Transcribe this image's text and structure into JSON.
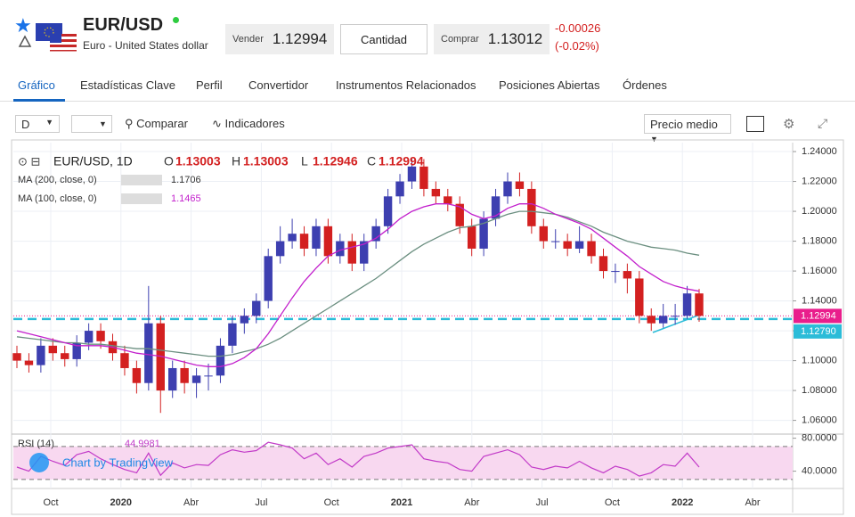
{
  "header": {
    "symbol": "EUR/USD",
    "name": "Euro - United States dollar",
    "sell_label": "Vender",
    "sell": 1.12994,
    "quantity": "Cantidad",
    "buy_label": "Comprar",
    "buy": 1.13012,
    "change": -0.00026,
    "change_pct": "(-0.02%)"
  },
  "tabs": [
    "Gráfico",
    "Estadísticas Clave",
    "Perfil",
    "Convertidor",
    "Instrumentos Relacionados",
    "Posiciones Abiertas",
    "Órdenes"
  ],
  "toolbar": {
    "interval": "D",
    "compare": "Comparar",
    "indicators": "Indicadores",
    "price_mode": "Precio medio"
  },
  "chart_data": {
    "type": "candlestick",
    "title": "EUR/USD, 1D",
    "legend": {
      "o_label": "O",
      "o": 1.13003,
      "h_label": "H",
      "h": 1.13003,
      "l_label": "L",
      "l": 1.12946,
      "c_label": "C",
      "c": 1.12994
    },
    "open": [
      1.105,
      1.1,
      1.097,
      1.11,
      1.105,
      1.101,
      1.112,
      1.12,
      1.113,
      1.105,
      1.095,
      1.085,
      1.125,
      1.08,
      1.095,
      1.085,
      1.09,
      1.09,
      1.11,
      1.125,
      1.13,
      1.14,
      1.17,
      1.18,
      1.185,
      1.175,
      1.19,
      1.17,
      1.18,
      1.165,
      1.18,
      1.19,
      1.21,
      1.22,
      1.23,
      1.215,
      1.21,
      1.205,
      1.19,
      1.175,
      1.195,
      1.21,
      1.22,
      1.215,
      1.19,
      1.18,
      1.18,
      1.175,
      1.18,
      1.17,
      1.16,
      1.16,
      1.155,
      1.13,
      1.125,
      1.13,
      1.13,
      1.145
    ],
    "high": [
      1.11,
      1.105,
      1.115,
      1.115,
      1.11,
      1.117,
      1.125,
      1.125,
      1.118,
      1.11,
      1.1,
      1.15,
      1.13,
      1.1,
      1.1,
      1.095,
      1.098,
      1.115,
      1.13,
      1.135,
      1.145,
      1.175,
      1.19,
      1.195,
      1.19,
      1.195,
      1.195,
      1.185,
      1.185,
      1.185,
      1.195,
      1.215,
      1.225,
      1.235,
      1.235,
      1.22,
      1.215,
      1.21,
      1.195,
      1.2,
      1.215,
      1.226,
      1.226,
      1.22,
      1.195,
      1.188,
      1.185,
      1.19,
      1.185,
      1.175,
      1.165,
      1.165,
      1.16,
      1.135,
      1.138,
      1.138,
      1.15,
      1.148
    ],
    "low": [
      1.095,
      1.092,
      1.092,
      1.1,
      1.096,
      1.096,
      1.107,
      1.108,
      1.1,
      1.09,
      1.078,
      1.08,
      1.065,
      1.075,
      1.078,
      1.075,
      1.08,
      1.085,
      1.105,
      1.118,
      1.125,
      1.135,
      1.165,
      1.175,
      1.17,
      1.17,
      1.165,
      1.165,
      1.16,
      1.16,
      1.175,
      1.185,
      1.205,
      1.215,
      1.21,
      1.205,
      1.2,
      1.185,
      1.17,
      1.17,
      1.19,
      1.205,
      1.21,
      1.185,
      1.175,
      1.175,
      1.17,
      1.172,
      1.165,
      1.155,
      1.152,
      1.145,
      1.125,
      1.12,
      1.122,
      1.124,
      1.128,
      1.126
    ],
    "close": [
      1.1,
      1.097,
      1.11,
      1.105,
      1.101,
      1.112,
      1.12,
      1.113,
      1.105,
      1.095,
      1.085,
      1.125,
      1.08,
      1.095,
      1.085,
      1.09,
      1.09,
      1.11,
      1.125,
      1.13,
      1.14,
      1.17,
      1.18,
      1.185,
      1.175,
      1.19,
      1.17,
      1.18,
      1.165,
      1.18,
      1.19,
      1.21,
      1.22,
      1.23,
      1.215,
      1.21,
      1.205,
      1.19,
      1.175,
      1.195,
      1.21,
      1.22,
      1.215,
      1.19,
      1.18,
      1.18,
      1.175,
      1.18,
      1.17,
      1.16,
      1.16,
      1.155,
      1.13,
      1.125,
      1.13,
      1.13,
      1.145,
      1.13
    ],
    "up_color": "#3d3fb0",
    "down_color": "#d32020",
    "series": [
      {
        "name": "MA (200, close, 0)",
        "color": "#6b8f80",
        "values": [
          1.116,
          1.115,
          1.114,
          1.113,
          1.112,
          1.112,
          1.111,
          1.111,
          1.11,
          1.109,
          1.108,
          1.108,
          1.107,
          1.106,
          1.105,
          1.104,
          1.103,
          1.103,
          1.104,
          1.106,
          1.108,
          1.111,
          1.115,
          1.12,
          1.125,
          1.13,
          1.135,
          1.14,
          1.145,
          1.15,
          1.155,
          1.161,
          1.167,
          1.173,
          1.178,
          1.182,
          1.186,
          1.189,
          1.19,
          1.192,
          1.195,
          1.198,
          1.2,
          1.2,
          1.199,
          1.198,
          1.196,
          1.193,
          1.19,
          1.186,
          1.183,
          1.18,
          1.178,
          1.176,
          1.175,
          1.174,
          1.172,
          1.1706
        ]
      },
      {
        "name": "MA (100, close, 0)",
        "color": "#c21fcc",
        "values": [
          1.12,
          1.118,
          1.116,
          1.114,
          1.112,
          1.11,
          1.11,
          1.11,
          1.109,
          1.107,
          1.105,
          1.104,
          1.103,
          1.101,
          1.099,
          1.097,
          1.096,
          1.096,
          1.098,
          1.102,
          1.108,
          1.118,
          1.13,
          1.142,
          1.153,
          1.162,
          1.17,
          1.174,
          1.176,
          1.178,
          1.182,
          1.188,
          1.195,
          1.2,
          1.203,
          1.205,
          1.205,
          1.203,
          1.198,
          1.195,
          1.197,
          1.202,
          1.205,
          1.205,
          1.202,
          1.198,
          1.195,
          1.192,
          1.188,
          1.182,
          1.176,
          1.17,
          1.163,
          1.158,
          1.153,
          1.15,
          1.148,
          1.1465
        ]
      }
    ],
    "ylim": [
      1.052,
      1.246
    ],
    "yticks": [
      {
        "value": 1.06,
        "label": "1.06000"
      },
      {
        "value": 1.08,
        "label": "1.08000"
      },
      {
        "value": 1.1,
        "label": "1.10000"
      },
      {
        "value": 1.12,
        "label": "1.12000"
      },
      {
        "value": 1.14,
        "label": "1.14000"
      },
      {
        "value": 1.16,
        "label": "1.16000"
      },
      {
        "value": 1.18,
        "label": "1.18000"
      },
      {
        "value": 1.2,
        "label": "1.20000"
      },
      {
        "value": 1.22,
        "label": "1.22000"
      },
      {
        "value": 1.24,
        "label": "1.24000"
      }
    ],
    "last_price": 1.12994,
    "last_color": "#e91e8c",
    "ref_line": {
      "value": 1.1279,
      "label": "1.12790",
      "color": "#2bbcd8"
    },
    "xticks": [
      "Oct",
      "2020",
      "Abr",
      "Jul",
      "Oct",
      "2021",
      "Abr",
      "Jul",
      "Oct",
      "2022",
      "Abr"
    ],
    "rsi": {
      "name": "RSI (14)",
      "color": "#c23ac8",
      "values": [
        45,
        40,
        58,
        52,
        47,
        60,
        64,
        55,
        48,
        42,
        38,
        62,
        35,
        50,
        44,
        48,
        47,
        60,
        66,
        63,
        65,
        75,
        72,
        68,
        55,
        62,
        48,
        55,
        45,
        58,
        62,
        68,
        70,
        72,
        55,
        52,
        50,
        42,
        40,
        58,
        62,
        66,
        60,
        45,
        42,
        46,
        44,
        52,
        44,
        38,
        46,
        42,
        34,
        38,
        48,
        46,
        62,
        44.9981
      ],
      "ylim": [
        19,
        85
      ],
      "yticks": [
        {
          "value": 80,
          "label": "80.0000"
        },
        {
          "value": 40,
          "label": "40.0000"
        }
      ],
      "bands": [
        70,
        30
      ]
    },
    "watermark": "Chart by TradingView"
  }
}
